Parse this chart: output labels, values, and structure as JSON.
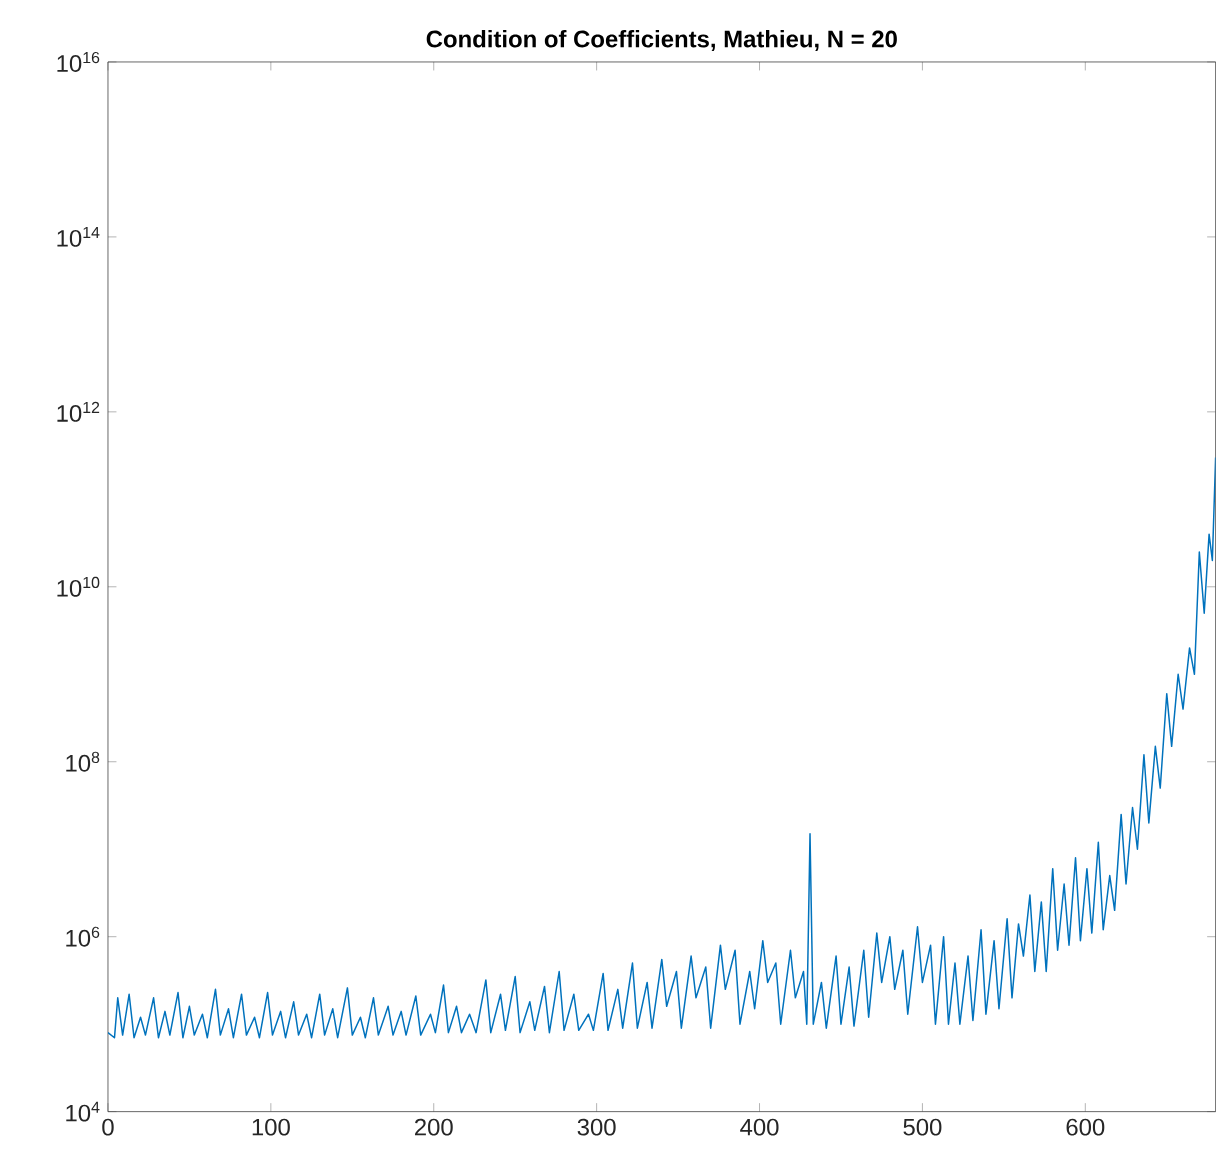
{
  "chart_data": {
    "type": "line",
    "title": "Condition of Coefficients, Mathieu, N = 20",
    "log": "y",
    "xlim": [
      0,
      680
    ],
    "ylim": [
      10000,
      1e+16
    ],
    "xticks": [
      0,
      100,
      200,
      300,
      400,
      500,
      600
    ],
    "yticks": [
      {
        "value": 10000.0,
        "label": "10$^{4}$"
      },
      {
        "value": 1000000.0,
        "label": "10$^{6}$"
      },
      {
        "value": 100000000.0,
        "label": "10$^{8}$"
      },
      {
        "value": 10000000000.0,
        "label": "10$^{10}$"
      },
      {
        "value": 1000000000000.0,
        "label": "10$^{12}$"
      },
      {
        "value": 100000000000000.0,
        "label": "10$^{14}$"
      },
      {
        "value": 1e+16,
        "label": "10$^{16}$"
      }
    ],
    "series": [
      {
        "color": "#0072bd",
        "x": [
          0,
          4,
          6,
          9,
          13,
          16,
          20,
          23,
          28,
          31,
          35,
          38,
          43,
          46,
          50,
          53,
          58,
          61,
          66,
          69,
          74,
          77,
          82,
          85,
          90,
          93,
          98,
          101,
          106,
          109,
          114,
          117,
          122,
          125,
          130,
          133,
          138,
          141,
          147,
          150,
          155,
          158,
          163,
          166,
          172,
          175,
          180,
          183,
          189,
          192,
          198,
          201,
          206,
          209,
          214,
          217,
          222,
          226,
          232,
          235,
          241,
          244,
          250,
          253,
          259,
          262,
          268,
          271,
          277,
          280,
          286,
          289,
          295,
          298,
          304,
          307,
          313,
          316,
          322,
          325,
          331,
          334,
          340,
          343,
          349,
          352,
          358,
          361,
          367,
          370,
          376,
          379,
          385,
          388,
          394,
          397,
          402,
          405,
          410,
          413,
          419,
          422,
          427,
          429,
          431,
          433,
          438,
          441,
          447,
          450,
          455,
          458,
          464,
          467,
          472,
          475,
          480,
          483,
          488,
          491,
          497,
          500,
          505,
          508,
          513,
          516,
          520,
          523,
          528,
          531,
          536,
          539,
          544,
          547,
          552,
          555,
          559,
          562,
          566,
          569,
          573,
          576,
          580,
          583,
          587,
          590,
          594,
          597,
          601,
          604,
          608,
          611,
          615,
          618,
          622,
          625,
          629,
          632,
          636,
          639,
          643,
          646,
          650,
          653,
          657,
          660,
          664,
          667,
          670,
          673,
          676,
          678,
          680
        ],
        "values": [
          80000.0,
          70000.0,
          200000.0,
          75000.0,
          220000.0,
          70000.0,
          120000.0,
          75000.0,
          200000.0,
          70000.0,
          140000.0,
          75000.0,
          230000.0,
          70000.0,
          160000.0,
          75000.0,
          130000.0,
          70000.0,
          250000.0,
          75000.0,
          150000.0,
          70000.0,
          220000.0,
          75000.0,
          120000.0,
          70000.0,
          230000.0,
          75000.0,
          140000.0,
          70000.0,
          180000.0,
          75000.0,
          130000.0,
          70000.0,
          220000.0,
          75000.0,
          150000.0,
          70000.0,
          260000.0,
          75000.0,
          120000.0,
          70000.0,
          200000.0,
          75000.0,
          160000.0,
          75000.0,
          140000.0,
          75000.0,
          210000.0,
          75000.0,
          130000.0,
          80000.0,
          280000.0,
          80000.0,
          160000.0,
          80000.0,
          130000.0,
          80000.0,
          320000.0,
          80000.0,
          220000.0,
          85000.0,
          350000.0,
          80000.0,
          180000.0,
          85000.0,
          270000.0,
          80000.0,
          400000.0,
          85000.0,
          220000.0,
          85000.0,
          130000.0,
          85000.0,
          380000.0,
          85000.0,
          250000.0,
          90000.0,
          500000.0,
          90000.0,
          300000.0,
          90000.0,
          550000.0,
          160000.0,
          400000.0,
          90000.0,
          600000.0,
          200000.0,
          450000.0,
          90000.0,
          800000.0,
          250000.0,
          700000.0,
          100000.0,
          400000.0,
          150000.0,
          900000.0,
          300000.0,
          500000.0,
          100000.0,
          700000.0,
          200000.0,
          400000.0,
          100000.0,
          15000000.0,
          100000.0,
          300000.0,
          90000.0,
          600000.0,
          100000.0,
          450000.0,
          95000.0,
          700000.0,
          120000.0,
          1100000.0,
          300000.0,
          1000000.0,
          250000.0,
          700000.0,
          130000.0,
          1300000.0,
          300000.0,
          800000.0,
          100000.0,
          1000000.0,
          100000.0,
          500000.0,
          100000.0,
          600000.0,
          110000.0,
          1200000.0,
          130000.0,
          900000.0,
          150000.0,
          1600000.0,
          200000.0,
          1400000.0,
          600000.0,
          3000000.0,
          400000.0,
          2500000.0,
          400000.0,
          6000000.0,
          700000.0,
          4000000.0,
          800000.0,
          8000000.0,
          900000.0,
          6000000.0,
          1100000.0,
          12000000.0,
          1200000.0,
          5000000.0,
          2000000.0,
          25000000.0,
          4000000.0,
          30000000.0,
          10000000.0,
          120000000.0,
          20000000.0,
          150000000.0,
          50000000.0,
          600000000.0,
          150000000.0,
          1000000000.0,
          400000000.0,
          2000000000.0,
          1000000000.0,
          25000000000.0,
          5000000000.0,
          40000000000.0,
          20000000000.0,
          300000000000.0
        ]
      }
    ]
  }
}
